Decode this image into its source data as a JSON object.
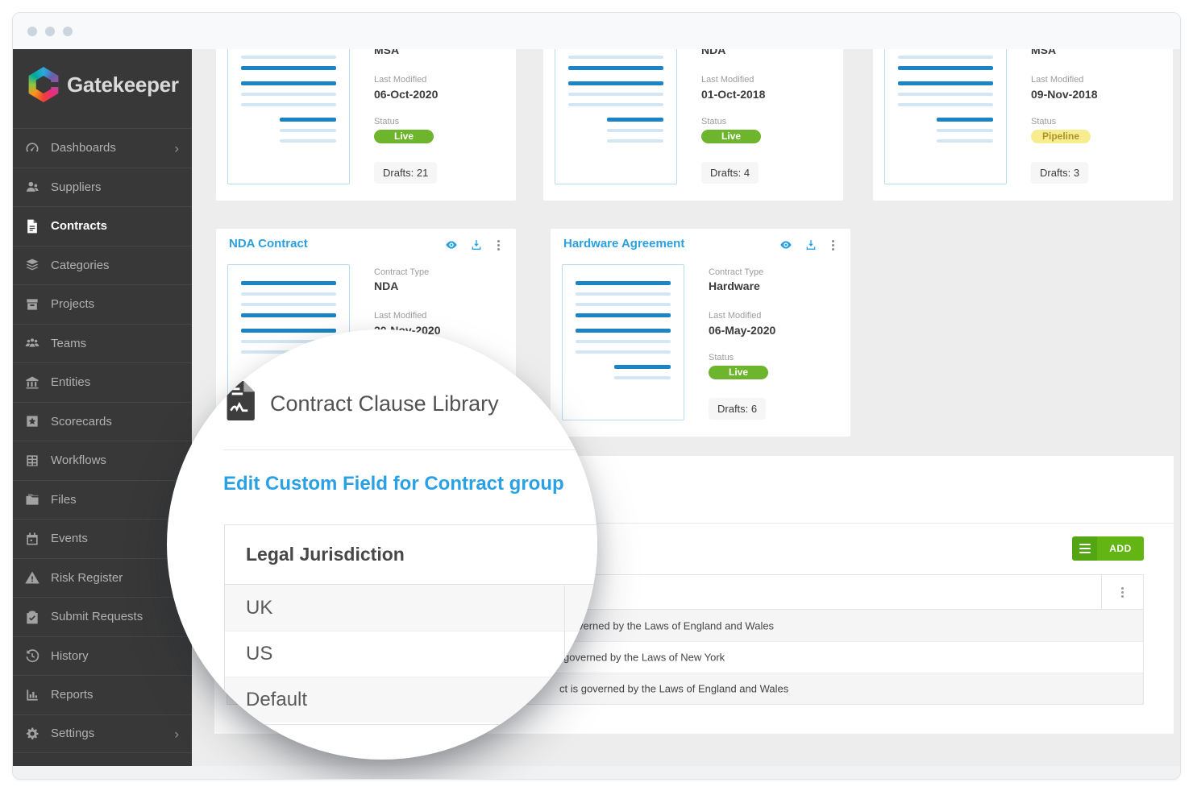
{
  "brand": {
    "name": "Gatekeeper"
  },
  "sidebar": {
    "items": [
      {
        "label": "Dashboards",
        "icon": "dashboards",
        "chevron": "›",
        "active": false
      },
      {
        "label": "Suppliers",
        "icon": "suppliers",
        "active": false
      },
      {
        "label": "Contracts",
        "icon": "contracts",
        "active": true
      },
      {
        "label": "Categories",
        "icon": "categories",
        "active": false
      },
      {
        "label": "Projects",
        "icon": "projects",
        "active": false
      },
      {
        "label": "Teams",
        "icon": "teams",
        "active": false
      },
      {
        "label": "Entities",
        "icon": "entities",
        "active": false
      },
      {
        "label": "Scorecards",
        "icon": "scorecards",
        "active": false
      },
      {
        "label": "Workflows",
        "icon": "workflows",
        "active": false
      },
      {
        "label": "Files",
        "icon": "files",
        "active": false
      },
      {
        "label": "Events",
        "icon": "events",
        "active": false
      },
      {
        "label": "Risk Register",
        "icon": "risk",
        "active": false
      },
      {
        "label": "Submit Requests",
        "icon": "requests",
        "active": false
      },
      {
        "label": "History",
        "icon": "history",
        "active": false
      },
      {
        "label": "Reports",
        "icon": "reports",
        "active": false
      },
      {
        "label": "Settings",
        "icon": "settings",
        "chevron": "›",
        "active": false
      }
    ]
  },
  "cards": {
    "r1": [
      {
        "type_value": "MSA",
        "modified_label": "Last Modified",
        "modified_value": "06-Oct-2020",
        "status_label": "Status",
        "status_value": "Live",
        "status_variant": "live",
        "drafts": "Drafts: 21",
        "thumb": [
          "l",
          "l",
          "d",
          "sp",
          "d",
          "l",
          "l",
          "sp",
          "dr",
          "lr",
          "lr"
        ]
      },
      {
        "type_value": "NDA",
        "modified_label": "Last Modified",
        "modified_value": "01-Oct-2018",
        "status_label": "Status",
        "status_value": "Live",
        "status_variant": "live",
        "drafts": "Drafts: 4",
        "thumb": [
          "l",
          "l",
          "d",
          "sp",
          "d",
          "l",
          "l",
          "sp",
          "dr",
          "lr",
          "lr"
        ]
      },
      {
        "type_value": "MSA",
        "modified_label": "Last Modified",
        "modified_value": "09-Nov-2018",
        "status_label": "Status",
        "status_value": "Pipeline",
        "status_variant": "pipeline",
        "drafts": "Drafts: 3",
        "thumb": [
          "l",
          "l",
          "d",
          "sp",
          "d",
          "l",
          "l",
          "sp",
          "dr",
          "lr",
          "lr"
        ]
      }
    ],
    "r2": [
      {
        "title": "NDA Contract",
        "type_label": "Contract Type",
        "type_value": "NDA",
        "modified_label": "Last Modified",
        "modified_value": "20-Nov-2020",
        "thumb": [
          "d",
          "l",
          "l",
          "d",
          "sp",
          "d",
          "l",
          "l",
          "sp",
          "dr",
          "lr"
        ]
      },
      {
        "title": "Hardware Agreement",
        "type_label": "Contract Type",
        "type_value": "Hardware",
        "modified_label": "Last Modified",
        "modified_value": "06-May-2020",
        "status_label": "Status",
        "status_value": "Live",
        "status_variant": "live",
        "drafts": "Drafts: 6",
        "thumb": [
          "d",
          "l",
          "l",
          "d",
          "sp",
          "d",
          "l",
          "l",
          "sp",
          "dr",
          "lr"
        ]
      }
    ]
  },
  "panel": {
    "add_label": "ADD",
    "rows": [
      {
        "fragment": "verned by the Laws of England and Wales"
      },
      {
        "fragment": "governed by the Laws of New York"
      },
      {
        "fragment": "ct is governed by the Laws of England and Wales"
      }
    ]
  },
  "lens": {
    "title": "Contract Clause Library",
    "heading": "Edit Custom Field for Contract group",
    "table": {
      "header": "Legal Jurisdiction",
      "rows": [
        "UK",
        "US",
        "Default"
      ]
    }
  },
  "colors": {
    "accent_blue": "#2aa0e0",
    "live_green": "#6cb52c",
    "pipeline_bg": "#f7ec8e",
    "pipeline_text": "#ab9430",
    "add_green": "#62b513",
    "sidebar_bg": "#383838"
  }
}
